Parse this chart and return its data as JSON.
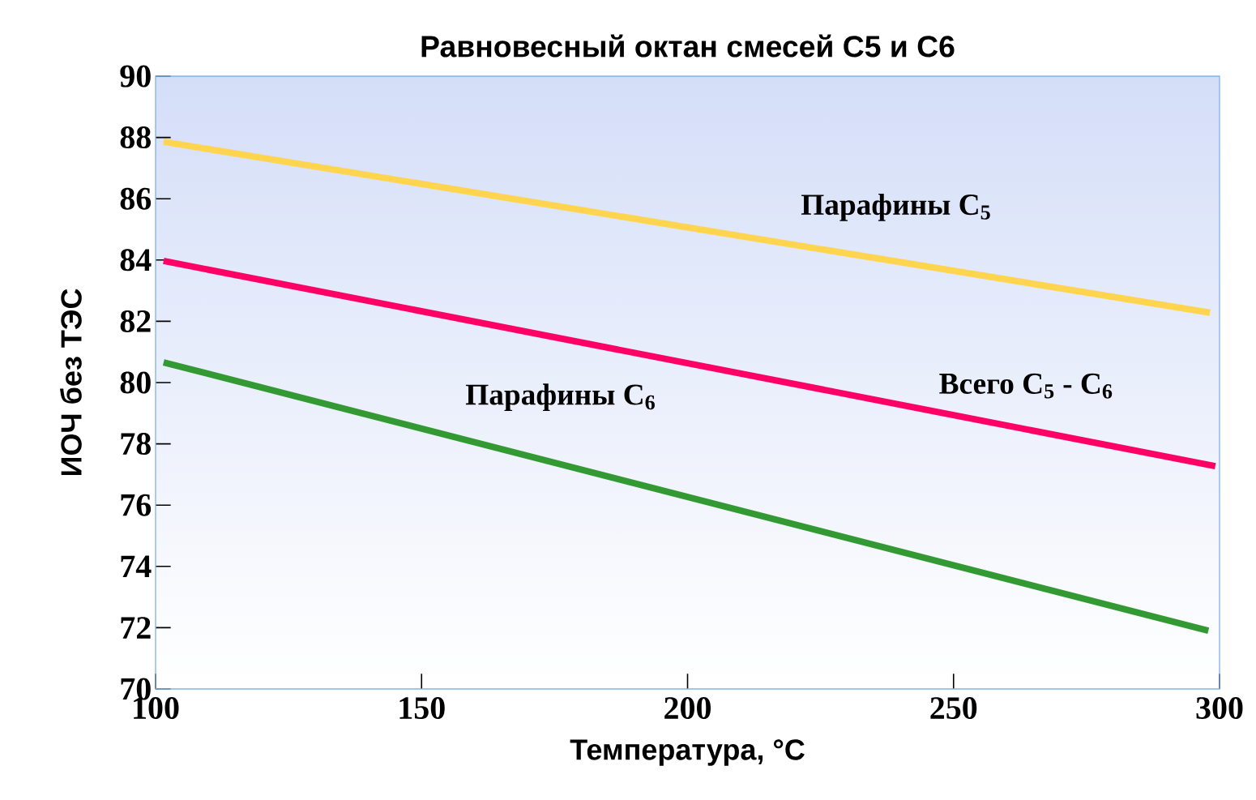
{
  "chart_data": {
    "type": "line",
    "title": "Равновесный октан смесей C5 и C6",
    "xlabel": "Температура, °C",
    "ylabel": "ИОЧ без ТЭС",
    "xlim": [
      100,
      300
    ],
    "xticks": [
      100,
      150,
      200,
      250,
      300
    ],
    "ylim": [
      70,
      90
    ],
    "yticks": [
      70,
      72,
      74,
      76,
      78,
      80,
      82,
      84,
      86,
      88,
      90
    ],
    "series": [
      {
        "name": "Парафины C$_{5}$",
        "color": "#ffd54f",
        "x": [
          101.5,
          298.2
        ],
        "values": [
          87.86,
          82.28
        ]
      },
      {
        "name": "Всего C$_{5}$ - C$_{6}$",
        "color": "#ff0066",
        "x": [
          101.5,
          299.2
        ],
        "values": [
          83.97,
          77.27
        ]
      },
      {
        "name": "Парафины C$_{6}$",
        "color": "#339933",
        "x": [
          101.5,
          297.9
        ],
        "values": [
          80.66,
          71.9
        ]
      }
    ]
  }
}
